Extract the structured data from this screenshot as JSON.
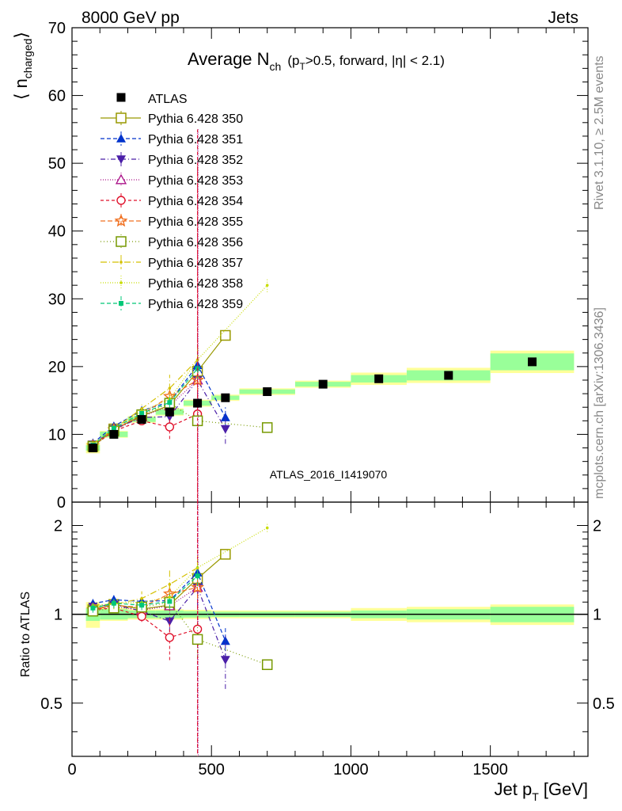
{
  "header": {
    "left": "8000 GeV pp",
    "right": "Jets"
  },
  "side_text": {
    "rivet": "Rivet 3.1.10, ≥ 2.5M events",
    "mcplots": "mcplots.cern.ch [arXiv:1306.3436]"
  },
  "colors": {
    "data": "#000000",
    "band_inner": "#99ff99",
    "band_outer": "#ffff99"
  },
  "chart_data": {
    "type": "line",
    "title_main": "Average N",
    "title_sub": "ch",
    "title_rest": "(p",
    "title_rest_sub": "T",
    "title_tail": ">0.5, forward, |η| < 2.1)",
    "ylabel_main": "⟨ n",
    "ylabel_sub": "charged",
    "ylabel_close": "⟩",
    "ratio_ylabel": "Ratio to ATLAS",
    "xlabel_main": "Jet p",
    "xlabel_sub": "T",
    "xlabel_unit": "[GeV]",
    "watermark": "ATLAS_2016_I1419070",
    "xlim": [
      0,
      1850
    ],
    "ylim": [
      0,
      70
    ],
    "ratio_ylim": [
      0.33,
      2.4
    ],
    "ratio_log": true,
    "x_ticks": [
      0,
      500,
      1000,
      1500
    ],
    "x_tick_labels": [
      "0",
      "500",
      "1000",
      "1500"
    ],
    "y_ticks": [
      0,
      10,
      20,
      30,
      40,
      50,
      60,
      70
    ],
    "y_tick_labels": [
      "0",
      "10",
      "20",
      "30",
      "40",
      "50",
      "60",
      "70"
    ],
    "ratio_ticks": [
      0.5,
      1,
      2
    ],
    "ratio_tick_labels": [
      "0.5",
      "1",
      "2"
    ],
    "legend_position": "top-left",
    "data": {
      "name": "ATLAS",
      "x": [
        75,
        150,
        250,
        350,
        450,
        550,
        700,
        900,
        1100,
        1350,
        1650
      ],
      "xerr": [
        25,
        50,
        50,
        50,
        50,
        50,
        100,
        100,
        100,
        150,
        150
      ],
      "y": [
        8.0,
        10.0,
        12.2,
        13.3,
        14.6,
        15.4,
        16.3,
        17.4,
        18.2,
        18.7,
        20.7
      ],
      "band_inner": [
        0.05,
        0.04,
        0.03,
        0.03,
        0.025,
        0.02,
        0.02,
        0.02,
        0.03,
        0.04,
        0.06
      ],
      "band_outer": [
        0.1,
        0.05,
        0.04,
        0.04,
        0.035,
        0.03,
        0.03,
        0.03,
        0.05,
        0.06,
        0.08
      ]
    },
    "series": [
      {
        "name": "Pythia 6.428 350",
        "color": "#999900",
        "dash": "",
        "marker": "square-open",
        "x": [
          75,
          150,
          250,
          350,
          450,
          550,
          700
        ],
        "y": [
          8.3,
          10.8,
          12.7,
          14.3,
          19.3,
          24.6,
          null
        ],
        "err": [
          0.3,
          0.4,
          0.5,
          0.7,
          1.2,
          0.6,
          0
        ]
      },
      {
        "name": "Pythia 6.428 351",
        "color": "#0033cc",
        "dash": "5,3",
        "marker": "triangle-up",
        "x": [
          75,
          150,
          250,
          350,
          450,
          550
        ],
        "y": [
          8.7,
          11.2,
          13.5,
          14.8,
          20.2,
          12.5
        ],
        "err": [
          0.3,
          0.4,
          0.6,
          1.0,
          2.5,
          1.5
        ]
      },
      {
        "name": "Pythia 6.428 352",
        "color": "#4b1fa8",
        "dash": "6,3,1,3",
        "marker": "triangle-down",
        "x": [
          75,
          150,
          250,
          350,
          450,
          550
        ],
        "y": [
          8.5,
          10.8,
          12.5,
          12.6,
          18.0,
          10.8
        ],
        "err": [
          0.3,
          0.4,
          0.6,
          1.0,
          2.5,
          2.2
        ]
      },
      {
        "name": "Pythia 6.428 353",
        "color": "#aa1188",
        "dash": "1,2",
        "marker": "triangle-open",
        "x": [
          75,
          150,
          250,
          350,
          450
        ],
        "y": [
          8.4,
          10.6,
          12.6,
          14.2,
          18.0
        ],
        "err": [
          0.3,
          0.4,
          0.5,
          0.8,
          37
        ]
      },
      {
        "name": "Pythia 6.428 354",
        "color": "#e0102a",
        "dash": "4,3",
        "marker": "circle-open",
        "x": [
          75,
          150,
          250,
          350,
          450
        ],
        "y": [
          8.3,
          10.5,
          12.0,
          11.1,
          13.0
        ],
        "err": [
          0.3,
          0.4,
          0.5,
          1.8,
          37
        ]
      },
      {
        "name": "Pythia 6.428 355",
        "color": "#f07020",
        "dash": "6,3",
        "marker": "star",
        "x": [
          75,
          150,
          250,
          350,
          450
        ],
        "y": [
          8.3,
          10.7,
          12.9,
          15.6,
          18.0
        ],
        "err": [
          0.3,
          0.4,
          0.6,
          1.0,
          1.5
        ]
      },
      {
        "name": "Pythia 6.428 356",
        "color": "#779900",
        "dash": "1,3",
        "marker": "square-open",
        "x": [
          75,
          150,
          250,
          350,
          450,
          700
        ],
        "y": [
          8.2,
          10.5,
          12.9,
          14.6,
          12.0,
          11.0
        ],
        "err": [
          0.3,
          0.4,
          0.5,
          0.8,
          1.5,
          0.2
        ]
      },
      {
        "name": "Pythia 6.428 357",
        "color": "#d4c000",
        "dash": "8,3,1,3",
        "marker": "dot",
        "x": [
          75,
          150,
          250,
          350,
          450
        ],
        "y": [
          8.6,
          10.8,
          13.8,
          16.8,
          21.0
        ],
        "err": [
          0.3,
          0.4,
          0.8,
          2.0,
          2.0
        ]
      },
      {
        "name": "Pythia 6.428 358",
        "color": "#c8dd00",
        "dash": "1,2",
        "marker": "dot",
        "x": [
          75,
          150,
          250,
          350,
          450,
          700
        ],
        "y": [
          8.5,
          10.9,
          13.4,
          15.2,
          21.0,
          32.0
        ],
        "err": [
          0.3,
          0.4,
          0.6,
          1.2,
          1.5,
          1.0
        ]
      },
      {
        "name": "Pythia 6.428 359",
        "color": "#00c878",
        "dash": "5,3",
        "marker": "square-small",
        "x": [
          75,
          150,
          250,
          350,
          450
        ],
        "y": [
          8.4,
          10.9,
          13.1,
          14.7,
          19.7
        ],
        "err": [
          0.3,
          0.4,
          0.5,
          0.8,
          1.5
        ]
      }
    ]
  }
}
